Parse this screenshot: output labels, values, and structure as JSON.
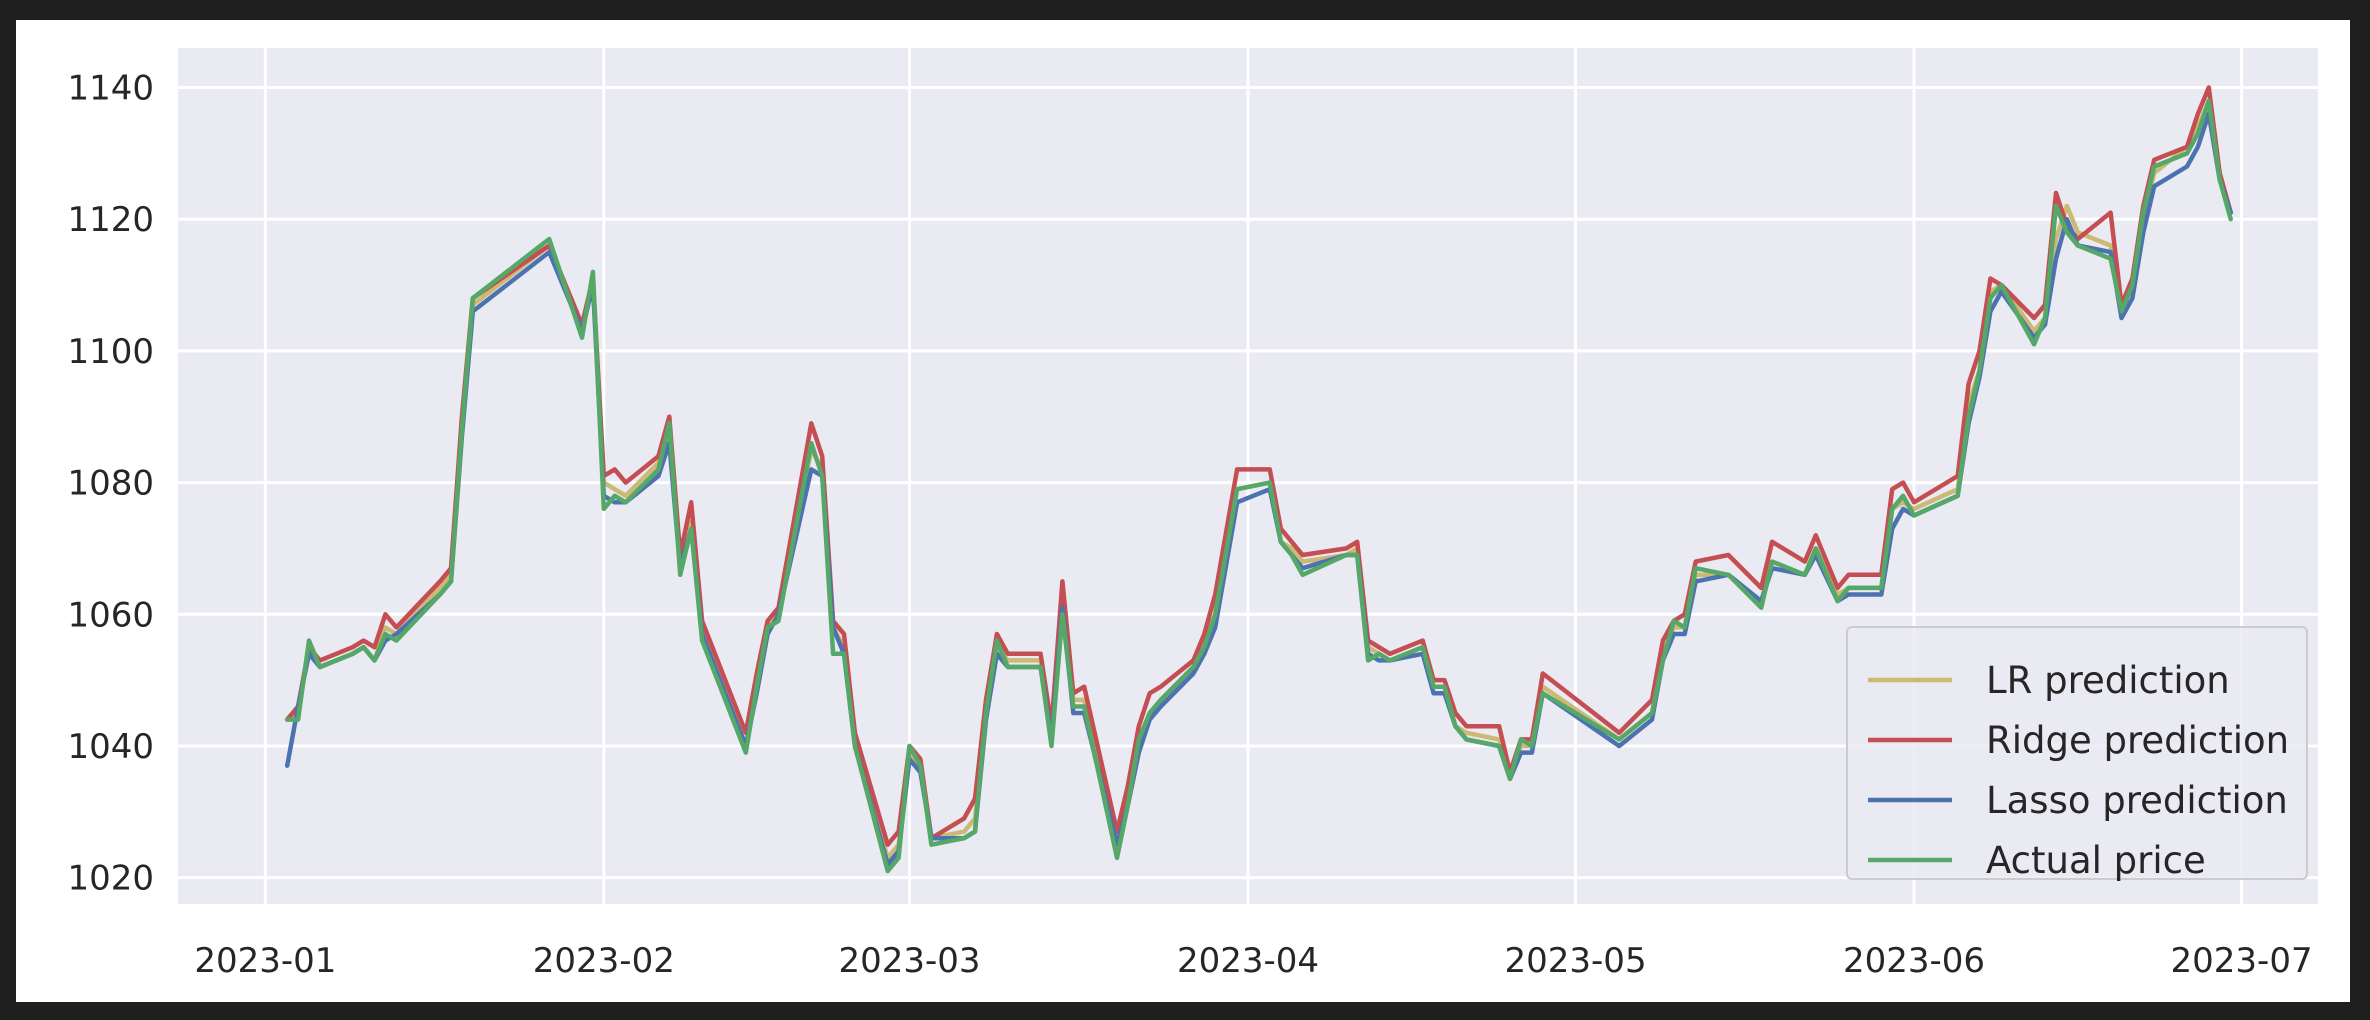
{
  "chart_data": {
    "type": "line",
    "title": "",
    "xlabel": "",
    "ylabel": "",
    "grid": true,
    "legend_position": "lower-right",
    "xlim": [
      "2022-12-24",
      "2023-07-08"
    ],
    "ylim": [
      1016,
      1146
    ],
    "x_ticks": [
      "2023-01",
      "2023-02",
      "2023-03",
      "2023-04",
      "2023-05",
      "2023-06",
      "2023-07"
    ],
    "x_tick_dates": [
      "2023-01-01",
      "2023-02-01",
      "2023-03-01",
      "2023-04-01",
      "2023-05-01",
      "2023-06-01",
      "2023-07-01"
    ],
    "y_ticks": [
      1020,
      1040,
      1060,
      1080,
      1100,
      1120,
      1140
    ],
    "x": [
      "2023-01-03",
      "2023-01-04",
      "2023-01-05",
      "2023-01-06",
      "2023-01-09",
      "2023-01-10",
      "2023-01-11",
      "2023-01-12",
      "2023-01-13",
      "2023-01-17",
      "2023-01-18",
      "2023-01-19",
      "2023-01-20",
      "2023-01-27",
      "2023-01-30",
      "2023-01-31",
      "2023-02-01",
      "2023-02-02",
      "2023-02-03",
      "2023-02-06",
      "2023-02-07",
      "2023-02-08",
      "2023-02-09",
      "2023-02-10",
      "2023-02-14",
      "2023-02-15",
      "2023-02-16",
      "2023-02-17",
      "2023-02-20",
      "2023-02-21",
      "2023-02-22",
      "2023-02-23",
      "2023-02-24",
      "2023-02-27",
      "2023-02-28",
      "2023-03-01",
      "2023-03-02",
      "2023-03-03",
      "2023-03-06",
      "2023-03-07",
      "2023-03-08",
      "2023-03-09",
      "2023-03-10",
      "2023-03-13",
      "2023-03-14",
      "2023-03-15",
      "2023-03-16",
      "2023-03-17",
      "2023-03-20",
      "2023-03-21",
      "2023-03-22",
      "2023-03-23",
      "2023-03-24",
      "2023-03-27",
      "2023-03-28",
      "2023-03-29",
      "2023-03-31",
      "2023-04-03",
      "2023-04-04",
      "2023-04-05",
      "2023-04-06",
      "2023-04-10",
      "2023-04-11",
      "2023-04-12",
      "2023-04-13",
      "2023-04-14",
      "2023-04-17",
      "2023-04-18",
      "2023-04-19",
      "2023-04-20",
      "2023-04-21",
      "2023-04-24",
      "2023-04-25",
      "2023-04-26",
      "2023-04-27",
      "2023-04-28",
      "2023-05-05",
      "2023-05-08",
      "2023-05-09",
      "2023-05-10",
      "2023-05-11",
      "2023-05-12",
      "2023-05-15",
      "2023-05-18",
      "2023-05-19",
      "2023-05-22",
      "2023-05-23",
      "2023-05-25",
      "2023-05-26",
      "2023-05-29",
      "2023-05-30",
      "2023-05-31",
      "2023-06-01",
      "2023-06-05",
      "2023-06-06",
      "2023-06-07",
      "2023-06-08",
      "2023-06-09",
      "2023-06-12",
      "2023-06-13",
      "2023-06-14",
      "2023-06-15",
      "2023-06-16",
      "2023-06-19",
      "2023-06-20",
      "2023-06-21",
      "2023-06-22",
      "2023-06-23",
      "2023-06-26",
      "2023-06-27",
      "2023-06-28",
      "2023-06-29",
      "2023-06-30"
    ],
    "series": [
      {
        "name": "LR prediction",
        "color": "#ccb974",
        "values": [
          1044,
          1045,
          1055,
          1052,
          1054,
          1055,
          1053,
          1058,
          1057,
          1064,
          1066,
          1088,
          1107,
          1116,
          1103,
          1111,
          1080,
          1079,
          1078,
          1083,
          1088,
          1067,
          1074,
          1058,
          1040,
          1050,
          1058,
          1060,
          1085,
          1082,
          1058,
          1055,
          1041,
          1023,
          1025,
          1039,
          1037,
          1026,
          1027,
          1029,
          1046,
          1055,
          1053,
          1053,
          1042,
          1063,
          1047,
          1047,
          1025,
          1033,
          1041,
          1045,
          1047,
          1052,
          1056,
          1060,
          1079,
          1080,
          1071,
          1070,
          1068,
          1069,
          1070,
          1055,
          1054,
          1053,
          1055,
          1049,
          1049,
          1043,
          1042,
          1041,
          1035,
          1040,
          1040,
          1049,
          1041,
          1045,
          1054,
          1058,
          1058,
          1066,
          1066,
          1062,
          1068,
          1066,
          1070,
          1063,
          1064,
          1064,
          1076,
          1077,
          1076,
          1079,
          1092,
          1097,
          1109,
          1110,
          1103,
          1105,
          1117,
          1122,
          1118,
          1116,
          1106,
          1110,
          1120,
          1127,
          1131,
          1134,
          1138,
          1127,
          1121
        ]
      },
      {
        "name": "Ridge prediction",
        "color": "#c44e52",
        "values": [
          1044,
          1046,
          1055,
          1053,
          1055,
          1056,
          1055,
          1060,
          1058,
          1065,
          1067,
          1090,
          1108,
          1116,
          1104,
          1111,
          1081,
          1082,
          1080,
          1084,
          1090,
          1069,
          1077,
          1059,
          1042,
          1051,
          1059,
          1061,
          1089,
          1084,
          1059,
          1057,
          1042,
          1025,
          1027,
          1040,
          1038,
          1026,
          1029,
          1032,
          1047,
          1057,
          1054,
          1054,
          1043,
          1065,
          1048,
          1049,
          1027,
          1034,
          1043,
          1048,
          1049,
          1053,
          1057,
          1063,
          1082,
          1082,
          1073,
          1071,
          1069,
          1070,
          1071,
          1056,
          1055,
          1054,
          1056,
          1050,
          1050,
          1045,
          1043,
          1043,
          1036,
          1041,
          1041,
          1051,
          1042,
          1047,
          1056,
          1059,
          1060,
          1068,
          1069,
          1064,
          1071,
          1068,
          1072,
          1064,
          1066,
          1066,
          1079,
          1080,
          1077,
          1081,
          1095,
          1100,
          1111,
          1110,
          1105,
          1107,
          1124,
          1119,
          1117,
          1121,
          1107,
          1111,
          1122,
          1129,
          1131,
          1136,
          1140,
          1127,
          1121
        ]
      },
      {
        "name": "Lasso prediction",
        "color": "#4c72b0",
        "values": [
          1037,
          1046,
          1054,
          1052,
          1054,
          1055,
          1053,
          1056,
          1057,
          1063,
          1065,
          1087,
          1106,
          1115,
          1103,
          1110,
          1078,
          1077,
          1077,
          1081,
          1086,
          1067,
          1073,
          1057,
          1040,
          1048,
          1057,
          1060,
          1082,
          1081,
          1058,
          1054,
          1040,
          1022,
          1024,
          1038,
          1036,
          1026,
          1026,
          1027,
          1044,
          1054,
          1052,
          1052,
          1041,
          1061,
          1045,
          1045,
          1025,
          1031,
          1039,
          1044,
          1046,
          1051,
          1054,
          1058,
          1077,
          1079,
          1071,
          1069,
          1067,
          1069,
          1069,
          1054,
          1053,
          1053,
          1054,
          1048,
          1048,
          1043,
          1041,
          1040,
          1035,
          1039,
          1039,
          1048,
          1040,
          1044,
          1053,
          1057,
          1057,
          1065,
          1066,
          1062,
          1067,
          1066,
          1069,
          1062,
          1063,
          1063,
          1073,
          1076,
          1075,
          1078,
          1089,
          1096,
          1106,
          1109,
          1102,
          1104,
          1114,
          1120,
          1116,
          1115,
          1105,
          1108,
          1118,
          1125,
          1128,
          1131,
          1136,
          1126,
          1121
        ]
      },
      {
        "name": "Actual price",
        "color": "#55a868",
        "values": [
          1044,
          1044,
          1056,
          1052,
          1054,
          1055,
          1053,
          1057,
          1056,
          1063,
          1065,
          1088,
          1108,
          1117,
          1102,
          1112,
          1076,
          1078,
          1077,
          1082,
          1089,
          1066,
          1073,
          1056,
          1039,
          1049,
          1058,
          1059,
          1086,
          1081,
          1054,
          1054,
          1040,
          1021,
          1023,
          1040,
          1037,
          1025,
          1026,
          1027,
          1045,
          1056,
          1052,
          1052,
          1040,
          1060,
          1046,
          1046,
          1023,
          1031,
          1041,
          1045,
          1047,
          1052,
          1055,
          1060,
          1079,
          1080,
          1071,
          1069,
          1066,
          1069,
          1069,
          1053,
          1054,
          1053,
          1055,
          1049,
          1049,
          1043,
          1041,
          1040,
          1035,
          1041,
          1040,
          1048,
          1041,
          1045,
          1053,
          1059,
          1058,
          1067,
          1066,
          1061,
          1068,
          1066,
          1070,
          1062,
          1064,
          1064,
          1076,
          1078,
          1075,
          1078,
          1090,
          1097,
          1108,
          1110,
          1101,
          1105,
          1122,
          1118,
          1116,
          1114,
          1106,
          1110,
          1121,
          1128,
          1130,
          1133,
          1138,
          1126,
          1120
        ]
      }
    ]
  }
}
